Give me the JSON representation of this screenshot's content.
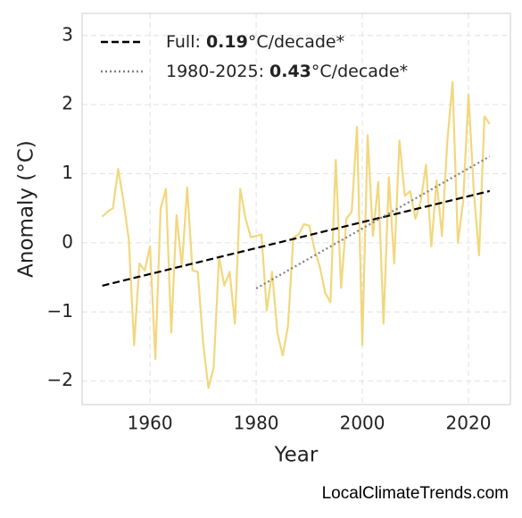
{
  "chart_data": {
    "type": "line",
    "x_label": "Year",
    "y_label": "Anomaly (°C)",
    "credit": "LocalClimateTrends.com",
    "xlim": [
      1947.2,
      2027.9
    ],
    "ylim": [
      -2.34,
      3.32
    ],
    "xticks": [
      1960,
      1980,
      2000,
      2020
    ],
    "yticks": [
      {
        "value": -2,
        "label": "−2"
      },
      {
        "value": -1,
        "label": "−1"
      },
      0,
      1,
      2,
      3
    ],
    "grid": true,
    "x": [
      1951,
      1952,
      1953,
      1954,
      1955,
      1956,
      1957,
      1958,
      1959,
      1960,
      1961,
      1962,
      1963,
      1964,
      1965,
      1966,
      1967,
      1968,
      1969,
      1970,
      1971,
      1972,
      1973,
      1974,
      1975,
      1976,
      1977,
      1978,
      1979,
      1980,
      1981,
      1982,
      1983,
      1984,
      1985,
      1986,
      1987,
      1988,
      1989,
      1990,
      1991,
      1992,
      1993,
      1994,
      1995,
      1996,
      1997,
      1998,
      1999,
      2000,
      2001,
      2002,
      2003,
      2004,
      2005,
      2006,
      2007,
      2008,
      2009,
      2010,
      2011,
      2012,
      2013,
      2014,
      2015,
      2016,
      2017,
      2018,
      2019,
      2020,
      2021,
      2022,
      2023,
      2024
    ],
    "series": [
      {
        "color": "#f2d77d",
        "values": [
          0.38,
          0.45,
          0.5,
          1.07,
          0.6,
          0.05,
          -1.48,
          -0.3,
          -0.4,
          -0.05,
          -1.68,
          0.5,
          0.78,
          -1.3,
          0.4,
          -0.35,
          0.8,
          -0.4,
          -0.42,
          -1.45,
          -2.1,
          -1.8,
          -0.2,
          -0.62,
          -0.42,
          -1.17,
          0.78,
          0.35,
          0.08,
          0.1,
          0.12,
          -0.98,
          -0.42,
          -1.3,
          -1.63,
          -1.2,
          0.08,
          0.12,
          0.27,
          0.25,
          -0.1,
          -0.35,
          -0.72,
          -0.86,
          1.2,
          -0.65,
          0.35,
          0.45,
          1.68,
          -1.48,
          1.56,
          0.1,
          0.88,
          -1.17,
          0.95,
          -0.3,
          1.48,
          0.68,
          0.75,
          0.35,
          0.6,
          1.13,
          -0.05,
          0.9,
          0.1,
          1.45,
          2.33,
          0.0,
          0.6,
          2.15,
          0.75,
          -0.18,
          1.83,
          1.72
        ]
      }
    ],
    "trend_lines": [
      {
        "x": [
          1951,
          2024
        ],
        "values": [
          -0.62,
          0.75
        ],
        "color": "#000000",
        "style": "dashed",
        "label_parts": [
          "Full: ",
          "0.19",
          "°C/decade*"
        ]
      },
      {
        "x": [
          1980,
          2024
        ],
        "values": [
          -0.66,
          1.25
        ],
        "color": "#808080",
        "style": "dotted",
        "label_parts": [
          "1980-2025: ",
          "0.43",
          "°C/decade*"
        ]
      }
    ],
    "legend_position": "upper left"
  }
}
